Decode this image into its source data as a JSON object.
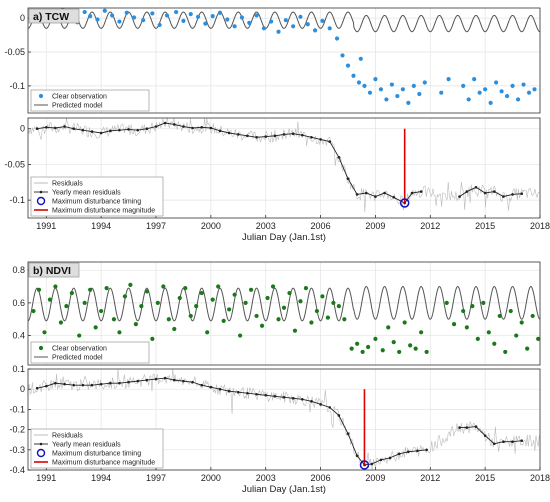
{
  "chart_data": [
    {
      "type": "scatter",
      "panel_label": "a) TCW",
      "x_ticks": [
        "1991",
        "1994",
        "1997",
        "2000",
        "2003",
        "2006",
        "2009",
        "2012",
        "2015",
        "2018"
      ],
      "y_ticks": [
        "0",
        "-0.05",
        "-0.1"
      ],
      "ylim": [
        -0.14,
        0.015
      ],
      "xlim": [
        1990.0,
        2018.0
      ],
      "legend_placement": "bottom-left",
      "legend": [
        "Clear observation",
        "Predicted model"
      ],
      "grid": true,
      "colors": {
        "observation": "#2b8fe0",
        "model": "#555555"
      },
      "model": {
        "offset_before": -0.003,
        "offset_after": -0.008,
        "amplitude": 0.012,
        "period_years": 1.0,
        "break_year": 2007.8
      },
      "observations": [
        [
          1990.2,
          0.005
        ],
        [
          1990.5,
          -0.002
        ],
        [
          1990.9,
          0.008
        ],
        [
          1991.2,
          -0.004
        ],
        [
          1991.5,
          0.006
        ],
        [
          1991.9,
          0.012
        ],
        [
          1992.3,
          0.002
        ],
        [
          1992.7,
          -0.006
        ],
        [
          1993.1,
          0.009
        ],
        [
          1993.4,
          0.003
        ],
        [
          1993.8,
          -0.002
        ],
        [
          1994.2,
          0.011
        ],
        [
          1994.6,
          0.004
        ],
        [
          1995.0,
          -0.005
        ],
        [
          1995.4,
          0.008
        ],
        [
          1995.8,
          0.001
        ],
        [
          1996.3,
          -0.003
        ],
        [
          1996.8,
          0.007
        ],
        [
          1997.2,
          -0.01
        ],
        [
          1997.6,
          0.004
        ],
        [
          1998.1,
          0.009
        ],
        [
          1998.5,
          -0.004
        ],
        [
          1998.9,
          0.006
        ],
        [
          1999.3,
          0.002
        ],
        [
          1999.7,
          -0.008
        ],
        [
          2000.1,
          0.003
        ],
        [
          2000.5,
          0.008
        ],
        [
          2000.9,
          -0.002
        ],
        [
          2001.3,
          -0.012
        ],
        [
          2001.7,
          0.001
        ],
        [
          2002.1,
          -0.007
        ],
        [
          2002.5,
          0.004
        ],
        [
          2002.9,
          -0.015
        ],
        [
          2003.3,
          -0.005
        ],
        [
          2003.7,
          -0.02
        ],
        [
          2004.1,
          -0.003
        ],
        [
          2004.5,
          -0.012
        ],
        [
          2004.9,
          0.002
        ],
        [
          2005.3,
          -0.009
        ],
        [
          2005.7,
          -0.018
        ],
        [
          2006.1,
          -0.004
        ],
        [
          2006.5,
          -0.015
        ],
        [
          2006.9,
          -0.03
        ],
        [
          2007.2,
          -0.055
        ],
        [
          2007.5,
          -0.07
        ],
        [
          2007.8,
          -0.085
        ],
        [
          2008.1,
          -0.095
        ],
        [
          2008.4,
          -0.1
        ],
        [
          2008.7,
          -0.11
        ],
        [
          2009.0,
          -0.09
        ],
        [
          2009.3,
          -0.105
        ],
        [
          2009.6,
          -0.12
        ],
        [
          2009.9,
          -0.098
        ],
        [
          2010.2,
          -0.115
        ],
        [
          2010.5,
          -0.105
        ],
        [
          2010.8,
          -0.125
        ],
        [
          2011.1,
          -0.1
        ],
        [
          2011.4,
          -0.112
        ],
        [
          2011.7,
          -0.095
        ],
        [
          2013.8,
          -0.1
        ],
        [
          2014.1,
          -0.12
        ],
        [
          2014.4,
          -0.09
        ],
        [
          2014.7,
          -0.11
        ],
        [
          2015.0,
          -0.105
        ],
        [
          2015.3,
          -0.125
        ],
        [
          2015.6,
          -0.095
        ],
        [
          2015.9,
          -0.108
        ],
        [
          2016.2,
          -0.115
        ],
        [
          2016.5,
          -0.1
        ],
        [
          2016.8,
          -0.12
        ],
        [
          2017.1,
          -0.098
        ],
        [
          2017.4,
          -0.11
        ],
        [
          2017.7,
          -0.105
        ],
        [
          2008.2,
          -0.06
        ],
        [
          2012.6,
          -0.11
        ],
        [
          2013.0,
          -0.09
        ]
      ]
    },
    {
      "type": "line",
      "x_ticks": [
        "1991",
        "1994",
        "1997",
        "2000",
        "2003",
        "2006",
        "2009",
        "2012",
        "2015",
        "2018"
      ],
      "y_ticks": [
        "0",
        "-0.05",
        "-0.1"
      ],
      "ylim": [
        -0.125,
        0.015
      ],
      "xlim": [
        1990.0,
        2018.0
      ],
      "xlabel": "Julian Day (Jan.1st)",
      "legend_placement": "bottom-left",
      "legend": [
        "Residuals",
        "Yearly mean residuals",
        "Maximum disturbance timing",
        "Maximum disturbance magnitude"
      ],
      "colors": {
        "residuals": "#bbbbbb",
        "mean": "#222222",
        "timing": "#1010c0",
        "magnitude": "#e00000"
      },
      "max_disturbance": {
        "x": 2010.6,
        "y": -0.104
      },
      "yearly_mean": [
        [
          1990.5,
          0.0
        ],
        [
          1991.0,
          0.002
        ],
        [
          1991.5,
          0.001
        ],
        [
          1992.0,
          0.003
        ],
        [
          1992.5,
          0.0
        ],
        [
          1993.0,
          -0.002
        ],
        [
          1993.5,
          -0.004
        ],
        [
          1994.0,
          -0.006
        ],
        [
          1994.5,
          -0.003
        ],
        [
          1995.0,
          -0.002
        ],
        [
          1995.5,
          -0.001
        ],
        [
          1996.0,
          -0.002
        ],
        [
          1996.5,
          0.0
        ],
        [
          1997.0,
          0.003
        ],
        [
          1997.5,
          0.008
        ],
        [
          1998.0,
          0.006
        ],
        [
          1998.5,
          0.003
        ],
        [
          1999.0,
          0.001
        ],
        [
          1999.5,
          0.002
        ],
        [
          2000.0,
          0.001
        ],
        [
          2000.5,
          -0.003
        ],
        [
          2001.0,
          -0.006
        ],
        [
          2001.5,
          -0.008
        ],
        [
          2002.0,
          -0.01
        ],
        [
          2002.5,
          -0.012
        ],
        [
          2003.0,
          -0.011
        ],
        [
          2003.5,
          -0.01
        ],
        [
          2004.0,
          -0.008
        ],
        [
          2004.5,
          -0.007
        ],
        [
          2005.0,
          -0.009
        ],
        [
          2005.5,
          -0.012
        ],
        [
          2006.0,
          -0.015
        ],
        [
          2006.5,
          -0.018
        ],
        [
          2007.0,
          -0.04
        ],
        [
          2007.5,
          -0.07
        ],
        [
          2008.0,
          -0.092
        ],
        [
          2008.5,
          -0.09
        ],
        [
          2009.0,
          -0.095
        ],
        [
          2009.5,
          -0.09
        ],
        [
          2010.0,
          -0.096
        ],
        [
          2010.6,
          -0.104
        ],
        [
          2011.0,
          -0.09
        ],
        [
          2011.5,
          -0.088
        ],
        [
          2013.6,
          -0.095
        ],
        [
          2014.0,
          -0.088
        ],
        [
          2014.5,
          -0.082
        ],
        [
          2015.0,
          -0.09
        ],
        [
          2015.5,
          -0.088
        ],
        [
          2016.0,
          -0.095
        ],
        [
          2016.5,
          -0.092
        ],
        [
          2017.0,
          -0.091
        ]
      ]
    },
    {
      "type": "scatter",
      "panel_label": "b) NDVI",
      "x_ticks": [
        "1991",
        "1994",
        "1997",
        "2000",
        "2003",
        "2006",
        "2009",
        "2012",
        "2015",
        "2018"
      ],
      "y_ticks": [
        "0.8",
        "0.6",
        "0.4"
      ],
      "ylim": [
        0.22,
        0.85
      ],
      "xlim": [
        1990.0,
        2018.0
      ],
      "legend_placement": "bottom-left",
      "legend": [
        "Clear observation",
        "Predicted model"
      ],
      "grid": true,
      "colors": {
        "observation": "#1a7a1a",
        "model": "#555555"
      },
      "model": {
        "offset_before": 0.59,
        "offset_after": 0.6,
        "amplitude": 0.1,
        "period_years": 1.0,
        "break_year": 2007.8
      },
      "observations": [
        [
          1990.3,
          0.55
        ],
        [
          1990.6,
          0.68
        ],
        [
          1990.9,
          0.42
        ],
        [
          1991.2,
          0.62
        ],
        [
          1991.5,
          0.7
        ],
        [
          1991.8,
          0.48
        ],
        [
          1992.1,
          0.58
        ],
        [
          1992.4,
          0.66
        ],
        [
          1992.8,
          0.4
        ],
        [
          1993.1,
          0.6
        ],
        [
          1993.4,
          0.68
        ],
        [
          1993.7,
          0.45
        ],
        [
          1994.0,
          0.55
        ],
        [
          1994.3,
          0.69
        ],
        [
          1994.7,
          0.5
        ],
        [
          1995.0,
          0.42
        ],
        [
          1995.3,
          0.64
        ],
        [
          1995.6,
          0.71
        ],
        [
          1995.9,
          0.47
        ],
        [
          1996.2,
          0.58
        ],
        [
          1996.5,
          0.67
        ],
        [
          1996.8,
          0.38
        ],
        [
          1997.1,
          0.6
        ],
        [
          1997.4,
          0.7
        ],
        [
          1997.7,
          0.5
        ],
        [
          1998.0,
          0.44
        ],
        [
          1998.3,
          0.63
        ],
        [
          1998.6,
          0.69
        ],
        [
          1998.9,
          0.52
        ],
        [
          1999.2,
          0.58
        ],
        [
          1999.5,
          0.66
        ],
        [
          1999.8,
          0.42
        ],
        [
          2000.1,
          0.62
        ],
        [
          2000.4,
          0.7
        ],
        [
          2000.7,
          0.49
        ],
        [
          2001.0,
          0.56
        ],
        [
          2001.3,
          0.65
        ],
        [
          2001.6,
          0.4
        ],
        [
          2001.9,
          0.6
        ],
        [
          2002.2,
          0.68
        ],
        [
          2002.5,
          0.52
        ],
        [
          2002.8,
          0.46
        ],
        [
          2003.1,
          0.63
        ],
        [
          2003.4,
          0.7
        ],
        [
          2003.7,
          0.5
        ],
        [
          2004.0,
          0.57
        ],
        [
          2004.3,
          0.66
        ],
        [
          2004.6,
          0.43
        ],
        [
          2004.9,
          0.61
        ],
        [
          2005.2,
          0.69
        ],
        [
          2005.5,
          0.48
        ],
        [
          2005.8,
          0.55
        ],
        [
          2006.1,
          0.64
        ],
        [
          2006.4,
          0.51
        ],
        [
          2006.7,
          0.6
        ],
        [
          2007.0,
          0.58
        ],
        [
          2007.3,
          0.5
        ],
        [
          2007.7,
          0.32
        ],
        [
          2008.0,
          0.35
        ],
        [
          2008.3,
          0.3
        ],
        [
          2008.6,
          0.33
        ],
        [
          2009.0,
          0.38
        ],
        [
          2009.4,
          0.31
        ],
        [
          2009.7,
          0.45
        ],
        [
          2010.0,
          0.36
        ],
        [
          2010.3,
          0.3
        ],
        [
          2010.6,
          0.48
        ],
        [
          2010.9,
          0.34
        ],
        [
          2011.2,
          0.32
        ],
        [
          2011.5,
          0.42
        ],
        [
          2011.8,
          0.3
        ],
        [
          2013.8,
          0.55
        ],
        [
          2014.0,
          0.45
        ],
        [
          2014.3,
          0.58
        ],
        [
          2014.6,
          0.38
        ],
        [
          2014.9,
          0.6
        ],
        [
          2015.2,
          0.42
        ],
        [
          2015.5,
          0.35
        ],
        [
          2015.8,
          0.52
        ],
        [
          2016.1,
          0.3
        ],
        [
          2016.4,
          0.55
        ],
        [
          2016.7,
          0.4
        ],
        [
          2017.0,
          0.48
        ],
        [
          2017.3,
          0.32
        ],
        [
          2017.6,
          0.52
        ],
        [
          2017.9,
          0.38
        ],
        [
          2012.9,
          0.6
        ],
        [
          2013.3,
          0.47
        ]
      ]
    },
    {
      "type": "line",
      "x_ticks": [
        "1991",
        "1994",
        "1997",
        "2000",
        "2003",
        "2006",
        "2009",
        "2012",
        "2015",
        "2018"
      ],
      "y_ticks": [
        "0.1",
        "0",
        "-0.1",
        "-0.2",
        "-0.3",
        "-0.4"
      ],
      "ylim": [
        -0.4,
        0.1
      ],
      "xlim": [
        1990.0,
        2018.0
      ],
      "xlabel": "Julian Day (Jan.1st)",
      "legend_placement": "bottom-left",
      "legend": [
        "Residuals",
        "Yearly mean residuals",
        "Maximum disturbance timing",
        "Maximum disturbance magnitude"
      ],
      "colors": {
        "residuals": "#bbbbbb",
        "mean": "#222222",
        "timing": "#1010c0",
        "magnitude": "#e00000"
      },
      "max_disturbance": {
        "x": 2008.4,
        "y": -0.375
      },
      "yearly_mean": [
        [
          1990.5,
          0.005
        ],
        [
          1991.0,
          0.015
        ],
        [
          1991.5,
          0.03
        ],
        [
          1992.0,
          0.025
        ],
        [
          1992.5,
          0.02
        ],
        [
          1993.0,
          0.02
        ],
        [
          1993.5,
          0.02
        ],
        [
          1994.0,
          0.025
        ],
        [
          1994.5,
          0.03
        ],
        [
          1995.0,
          0.03
        ],
        [
          1995.5,
          0.035
        ],
        [
          1996.0,
          0.04
        ],
        [
          1996.5,
          0.045
        ],
        [
          1997.0,
          0.05
        ],
        [
          1997.5,
          0.055
        ],
        [
          1998.0,
          0.045
        ],
        [
          1998.5,
          0.04
        ],
        [
          1999.0,
          0.035
        ],
        [
          1999.5,
          0.02
        ],
        [
          2000.0,
          0.01
        ],
        [
          2000.5,
          0.0
        ],
        [
          2001.0,
          -0.01
        ],
        [
          2001.5,
          -0.015
        ],
        [
          2002.0,
          -0.02
        ],
        [
          2002.5,
          -0.025
        ],
        [
          2003.0,
          -0.03
        ],
        [
          2003.5,
          -0.035
        ],
        [
          2004.0,
          -0.04
        ],
        [
          2004.5,
          -0.045
        ],
        [
          2005.0,
          -0.05
        ],
        [
          2005.5,
          -0.06
        ],
        [
          2006.0,
          -0.075
        ],
        [
          2006.5,
          -0.09
        ],
        [
          2007.0,
          -0.13
        ],
        [
          2007.5,
          -0.22
        ],
        [
          2008.0,
          -0.33
        ],
        [
          2008.4,
          -0.375
        ],
        [
          2008.8,
          -0.37
        ],
        [
          2009.3,
          -0.35
        ],
        [
          2009.8,
          -0.34
        ],
        [
          2010.3,
          -0.32
        ],
        [
          2010.8,
          -0.31
        ],
        [
          2011.3,
          -0.305
        ],
        [
          2011.8,
          -0.3
        ],
        [
          2013.6,
          -0.19
        ],
        [
          2014.0,
          -0.19
        ],
        [
          2014.5,
          -0.185
        ],
        [
          2015.0,
          -0.23
        ],
        [
          2015.5,
          -0.27
        ],
        [
          2016.0,
          -0.26
        ],
        [
          2016.5,
          -0.26
        ],
        [
          2017.0,
          -0.255
        ]
      ]
    }
  ]
}
